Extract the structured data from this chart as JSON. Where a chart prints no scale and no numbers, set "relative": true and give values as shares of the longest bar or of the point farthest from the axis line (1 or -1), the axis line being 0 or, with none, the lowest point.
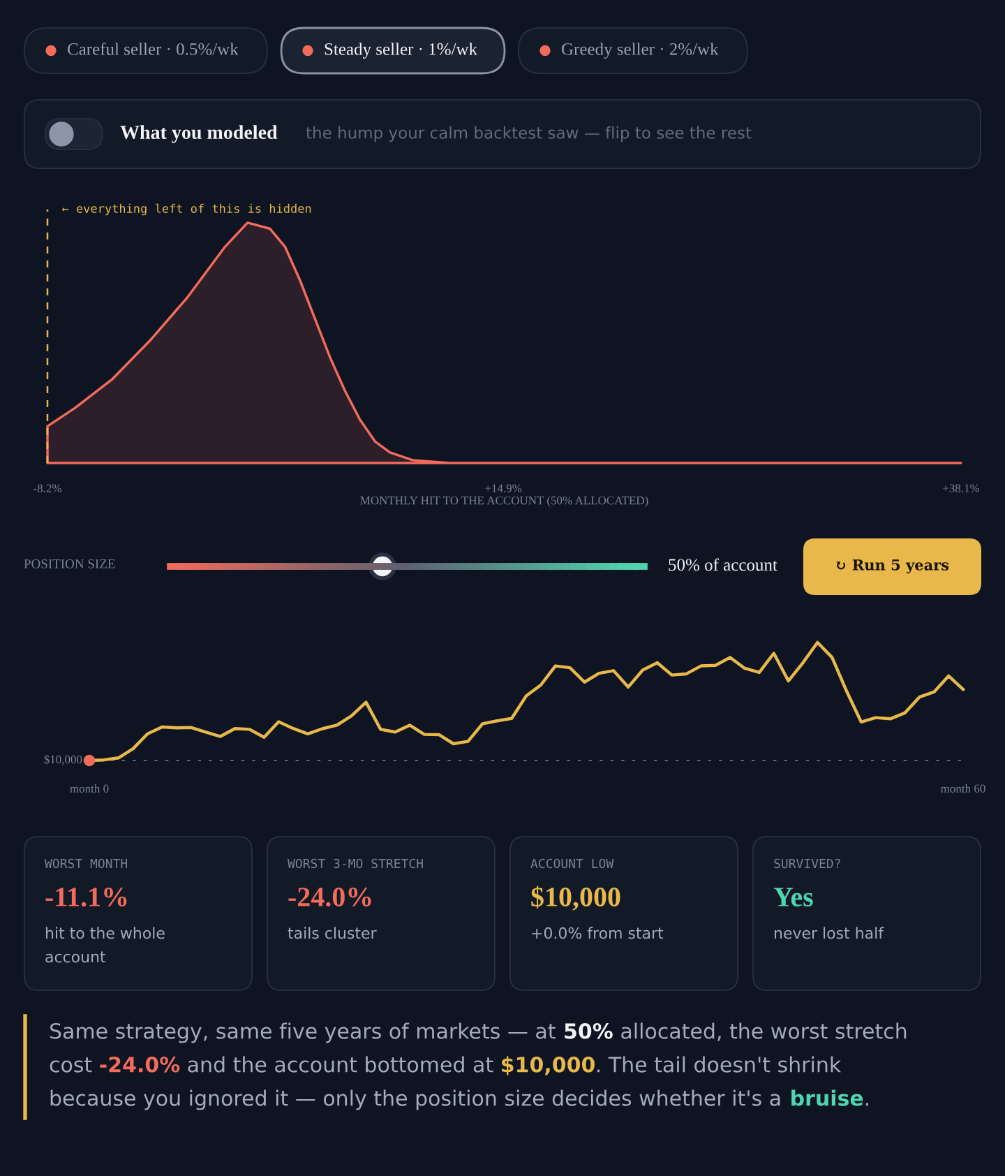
{
  "chart_data": [
    {
      "type": "area",
      "relative": true,
      "xlabel": "MONTHLY HIT TO THE ACCOUNT (50% ALLOCATED)",
      "xlim": [
        -8.2,
        38.1
      ],
      "xticks": [
        {
          "value": -8.2,
          "label": "-8.2%"
        },
        {
          "value": 14.9,
          "label": "+14.9%"
        },
        {
          "value": 38.1,
          "label": "+38.1%"
        }
      ],
      "x": [
        -8.2,
        -6.79,
        -4.9,
        -3.0,
        -1.1,
        0.8,
        1.94,
        3.08,
        3.84,
        4.6,
        5.36,
        6.12,
        6.88,
        7.64,
        8.4,
        9.16,
        10.3,
        12.2,
        38.1
      ],
      "series": [
        {
          "color": "#f26b5b",
          "values": [
            0.153,
            0.23,
            0.35,
            0.51,
            0.69,
            0.9,
            1.0,
            0.975,
            0.9,
            0.76,
            0.6,
            0.44,
            0.3,
            0.18,
            0.09,
            0.044,
            0.012,
            0,
            0
          ]
        }
      ],
      "ref_lines": [
        {
          "axis": "x",
          "value": -8.2,
          "label": "← everything left of this is hidden",
          "color": "#e8b84a",
          "line_style": "dashed"
        }
      ],
      "grid": false,
      "legend": false
    },
    {
      "type": "line",
      "relative": true,
      "categories": [
        "month 0",
        null,
        null,
        null,
        null,
        null,
        null,
        null,
        null,
        null,
        null,
        null,
        null,
        null,
        null,
        null,
        null,
        null,
        null,
        null,
        null,
        null,
        null,
        null,
        null,
        null,
        null,
        null,
        null,
        null,
        null,
        null,
        null,
        null,
        null,
        null,
        null,
        null,
        null,
        null,
        null,
        null,
        null,
        null,
        null,
        null,
        null,
        null,
        null,
        null,
        null,
        null,
        null,
        null,
        null,
        null,
        null,
        null,
        null,
        null,
        "month 60"
      ],
      "annotations": [
        "$10,000"
      ],
      "series": [
        {
          "color": "#e8b84a",
          "values": [
            0,
            0.005,
            0.022,
            0.1,
            0.226,
            0.284,
            0.276,
            0.279,
            0.241,
            0.204,
            0.271,
            0.264,
            0.197,
            0.328,
            0.271,
            0.226,
            0.269,
            0.299,
            0.378,
            0.493,
            0.264,
            0.241,
            0.299,
            0.221,
            0.219,
            0.142,
            0.162,
            0.311,
            0.336,
            0.356,
            0.547,
            0.639,
            0.801,
            0.786,
            0.664,
            0.739,
            0.761,
            0.622,
            0.766,
            0.828,
            0.724,
            0.734,
            0.801,
            0.806,
            0.873,
            0.781,
            0.746,
            0.908,
            0.674,
            0.828,
            1.0,
            0.873,
            0.587,
            0.326,
            0.363,
            0.353,
            0.403,
            0.537,
            0.58,
            0.716,
            0.602
          ]
        }
      ],
      "ref_lines": [
        {
          "axis": "y",
          "value": 0,
          "color": "#5d6475",
          "line_style": "dotted"
        }
      ],
      "grid": false,
      "legend": false,
      "line_style": "solid",
      "marker": "none"
    },
    {
      "type": "other",
      "annotations": [
        "Careful seller · 0.5%/wk",
        "Steady seller · 1%/wk",
        "Greedy seller · 2%/wk",
        "What you modeled",
        "the hump your calm backtest saw — flip to see the rest",
        "POSITION SIZE",
        "50% of account",
        "↻ Run 5 years",
        "WORST MONTH",
        "WORST 3-MO STRETCH",
        "ACCOUNT LOW",
        "SURVIVED?",
        "-11.1%",
        "-24.0%",
        "$10,000",
        "Yes",
        "hit to the whole account",
        "tails cluster",
        "+0.0% from start",
        "never lost half",
        "Same strategy, same five years of markets — at ",
        "50%",
        " allocated, the worst stretch cost ",
        "-24.0%",
        " and the account bottomed at ",
        "$10,000",
        ". The tail doesn't shrink because you ignored it — only the position size decides whether it's a ",
        "bruise",
        "."
      ]
    }
  ]
}
